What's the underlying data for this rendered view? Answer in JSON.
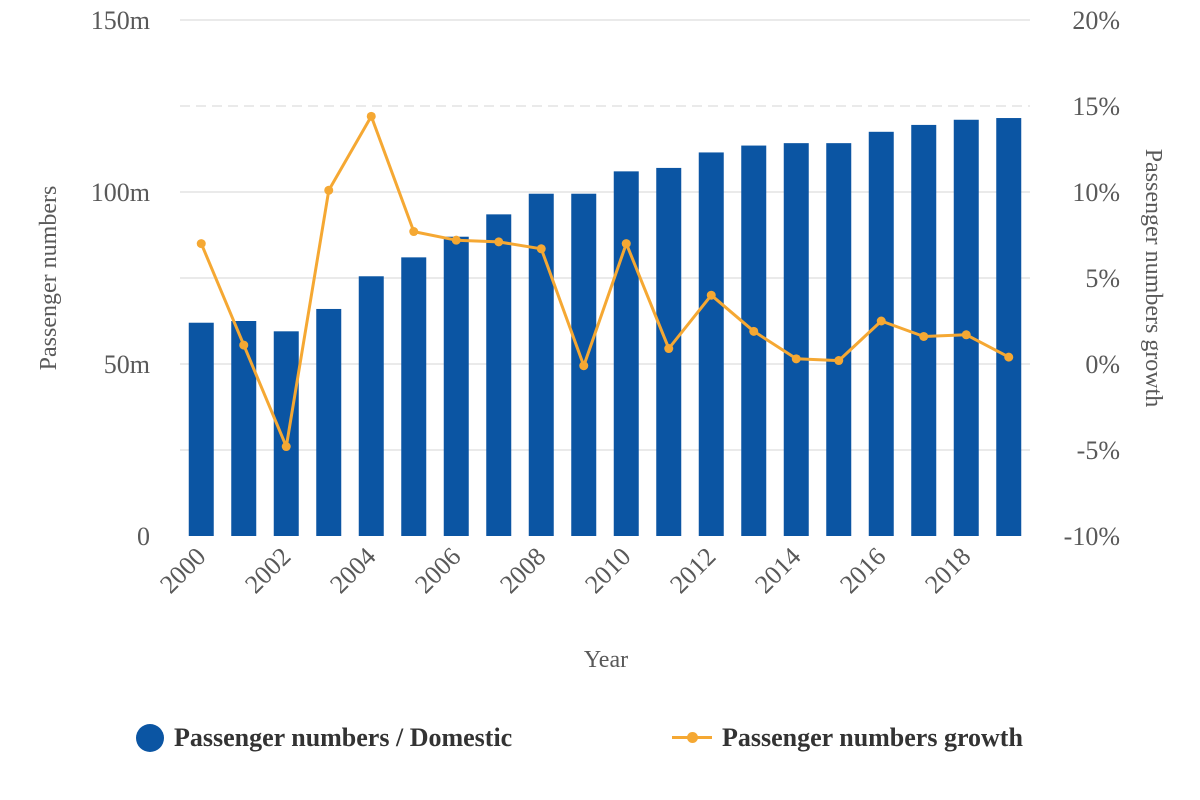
{
  "chart_data": {
    "type": "bar",
    "x_label": "Year",
    "y_label_left": "Passenger numbers",
    "y_label_right": "Passenger numbers growth",
    "categories": [
      2000,
      2001,
      2002,
      2003,
      2004,
      2005,
      2006,
      2007,
      2008,
      2009,
      2010,
      2011,
      2012,
      2013,
      2014,
      2015,
      2016,
      2017,
      2018,
      2019
    ],
    "x_tick_labels": [
      "2000",
      "2002",
      "2004",
      "2006",
      "2008",
      "2010",
      "2012",
      "2014",
      "2016",
      "2018"
    ],
    "y_left": {
      "min": 0,
      "max": 150,
      "ticks": [
        0,
        50,
        100,
        150
      ],
      "tick_labels": [
        "0",
        "50m",
        "100m",
        "150m"
      ]
    },
    "y_right": {
      "min": -10,
      "max": 20,
      "ticks": [
        -10,
        -5,
        0,
        5,
        10,
        15,
        20
      ],
      "tick_labels": [
        "-10%",
        "-5%",
        "0%",
        "5%",
        "10%",
        "15%",
        "20%"
      ]
    },
    "grid": true,
    "legend_position": "bottom",
    "series": [
      {
        "name": "Passenger numbers / Domestic",
        "type": "bar",
        "axis": "left",
        "unit": "m",
        "color": "#0b55a3",
        "values": [
          62,
          62.5,
          59.5,
          66,
          75.5,
          81,
          87,
          93.5,
          99.5,
          99.5,
          106,
          107,
          111.5,
          113.5,
          114.2,
          114.2,
          117.5,
          119.5,
          121,
          121.5
        ]
      },
      {
        "name": "Passenger numbers growth",
        "type": "line",
        "axis": "right",
        "unit": "%",
        "color": "#f5a833",
        "values": [
          7.0,
          1.1,
          -4.8,
          10.1,
          14.4,
          7.7,
          7.2,
          7.1,
          6.7,
          -0.1,
          7.0,
          0.9,
          4.0,
          1.9,
          0.3,
          0.2,
          2.5,
          1.6,
          1.7,
          0.4
        ]
      }
    ]
  }
}
